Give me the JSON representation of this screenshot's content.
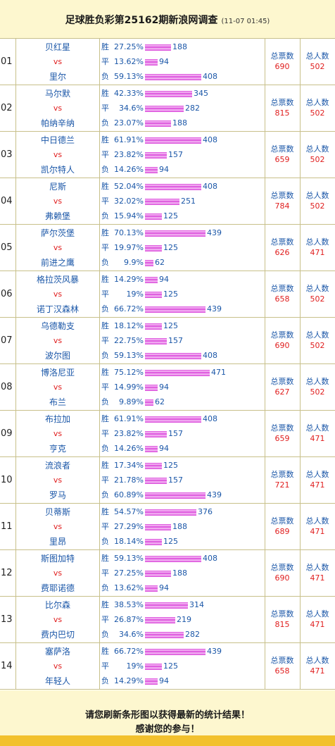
{
  "header": {
    "title": "足球胜负彩第25162期新浪网调查",
    "time": "(11-07 01:45)"
  },
  "labels": {
    "win": "胜",
    "draw": "平",
    "loss": "负",
    "vs": "vs",
    "votes": "总票数",
    "people": "总人数"
  },
  "matches": [
    {
      "no": "01",
      "home": "贝红星",
      "away": "里尔",
      "win": {
        "pct": "27.25%",
        "n": "188"
      },
      "draw": {
        "pct": "13.62%",
        "n": "94"
      },
      "loss": {
        "pct": "59.13%",
        "n": "408"
      },
      "votes": "690",
      "people": "502"
    },
    {
      "no": "02",
      "home": "马尔默",
      "away": "帕纳辛纳",
      "win": {
        "pct": "42.33%",
        "n": "345"
      },
      "draw": {
        "pct": "34.6%",
        "n": "282"
      },
      "loss": {
        "pct": "23.07%",
        "n": "188"
      },
      "votes": "815",
      "people": "502"
    },
    {
      "no": "03",
      "home": "中日德兰",
      "away": "凯尔特人",
      "win": {
        "pct": "61.91%",
        "n": "408"
      },
      "draw": {
        "pct": "23.82%",
        "n": "157"
      },
      "loss": {
        "pct": "14.26%",
        "n": "94"
      },
      "votes": "659",
      "people": "502"
    },
    {
      "no": "04",
      "home": "尼斯",
      "away": "弗赖堡",
      "win": {
        "pct": "52.04%",
        "n": "408"
      },
      "draw": {
        "pct": "32.02%",
        "n": "251"
      },
      "loss": {
        "pct": "15.94%",
        "n": "125"
      },
      "votes": "784",
      "people": "502"
    },
    {
      "no": "05",
      "home": "萨尔茨堡",
      "away": "前进之鹰",
      "win": {
        "pct": "70.13%",
        "n": "439"
      },
      "draw": {
        "pct": "19.97%",
        "n": "125"
      },
      "loss": {
        "pct": "9.9%",
        "n": "62"
      },
      "votes": "626",
      "people": "471"
    },
    {
      "no": "06",
      "home": "格拉茨风暴",
      "away": "诺丁汉森林",
      "win": {
        "pct": "14.29%",
        "n": "94"
      },
      "draw": {
        "pct": "19%",
        "n": "125"
      },
      "loss": {
        "pct": "66.72%",
        "n": "439"
      },
      "votes": "658",
      "people": "502"
    },
    {
      "no": "07",
      "home": "乌德勒支",
      "away": "波尔图",
      "win": {
        "pct": "18.12%",
        "n": "125"
      },
      "draw": {
        "pct": "22.75%",
        "n": "157"
      },
      "loss": {
        "pct": "59.13%",
        "n": "408"
      },
      "votes": "690",
      "people": "502"
    },
    {
      "no": "08",
      "home": "博洛尼亚",
      "away": "布兰",
      "win": {
        "pct": "75.12%",
        "n": "471"
      },
      "draw": {
        "pct": "14.99%",
        "n": "94"
      },
      "loss": {
        "pct": "9.89%",
        "n": "62"
      },
      "votes": "627",
      "people": "502"
    },
    {
      "no": "09",
      "home": "布拉加",
      "away": "亨克",
      "win": {
        "pct": "61.91%",
        "n": "408"
      },
      "draw": {
        "pct": "23.82%",
        "n": "157"
      },
      "loss": {
        "pct": "14.26%",
        "n": "94"
      },
      "votes": "659",
      "people": "471"
    },
    {
      "no": "10",
      "home": "流浪者",
      "away": "罗马",
      "win": {
        "pct": "17.34%",
        "n": "125"
      },
      "draw": {
        "pct": "21.78%",
        "n": "157"
      },
      "loss": {
        "pct": "60.89%",
        "n": "439"
      },
      "votes": "721",
      "people": "471"
    },
    {
      "no": "11",
      "home": "贝蒂斯",
      "away": "里昂",
      "win": {
        "pct": "54.57%",
        "n": "376"
      },
      "draw": {
        "pct": "27.29%",
        "n": "188"
      },
      "loss": {
        "pct": "18.14%",
        "n": "125"
      },
      "votes": "689",
      "people": "471"
    },
    {
      "no": "12",
      "home": "斯图加特",
      "away": "费耶诺德",
      "win": {
        "pct": "59.13%",
        "n": "408"
      },
      "draw": {
        "pct": "27.25%",
        "n": "188"
      },
      "loss": {
        "pct": "13.62%",
        "n": "94"
      },
      "votes": "690",
      "people": "471"
    },
    {
      "no": "13",
      "home": "比尔森",
      "away": "费内巴切",
      "win": {
        "pct": "38.53%",
        "n": "314"
      },
      "draw": {
        "pct": "26.87%",
        "n": "219"
      },
      "loss": {
        "pct": "34.6%",
        "n": "282"
      },
      "votes": "815",
      "people": "471"
    },
    {
      "no": "14",
      "home": "塞萨洛",
      "away": "年轻人",
      "win": {
        "pct": "66.72%",
        "n": "439"
      },
      "draw": {
        "pct": "19%",
        "n": "125"
      },
      "loss": {
        "pct": "14.29%",
        "n": "94"
      },
      "votes": "658",
      "people": "471"
    }
  ],
  "footer": {
    "line1": "请您刷新条形图以获得最新的统计结果！",
    "line2": "感谢您的参与！"
  }
}
